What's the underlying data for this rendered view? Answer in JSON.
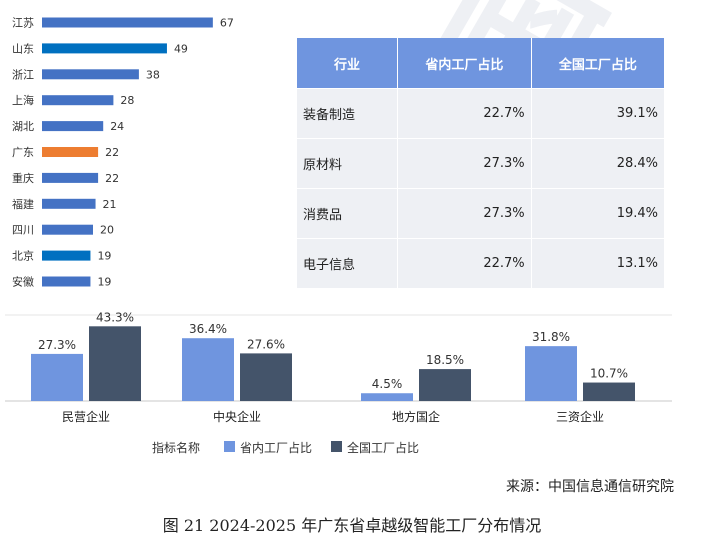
{
  "watermark": "国信通院",
  "colors": {
    "blue": "#4472c4",
    "dark_blue": "#0070c0",
    "orange": "#ed7d31",
    "light_blue": "#6f95df",
    "navy": "#44546a"
  },
  "chart_data": [
    {
      "type": "bar",
      "orientation": "horizontal",
      "categories": [
        "江苏",
        "山东",
        "浙江",
        "上海",
        "湖北",
        "广东",
        "重庆",
        "福建",
        "四川",
        "北京",
        "安徽"
      ],
      "values": [
        67,
        49,
        38,
        28,
        24,
        22,
        22,
        21,
        20,
        19,
        19
      ],
      "bar_colors": [
        "#4472c4",
        "#0070c0",
        "#4472c4",
        "#4472c4",
        "#4472c4",
        "#ed7d31",
        "#4472c4",
        "#4472c4",
        "#4472c4",
        "#0070c0",
        "#4472c4"
      ],
      "data_labels": true,
      "grid": false
    },
    {
      "type": "table",
      "columns": [
        "行业",
        "省内工厂占比",
        "全国工厂占比"
      ],
      "rows": [
        [
          "装备制造",
          "22.7%",
          "39.1%"
        ],
        [
          "原材料",
          "27.3%",
          "28.4%"
        ],
        [
          "消费品",
          "27.3%",
          "19.4%"
        ],
        [
          "电子信息",
          "22.7%",
          "13.1%"
        ]
      ]
    },
    {
      "type": "bar",
      "orientation": "vertical",
      "categories": [
        "民营企业",
        "中央企业",
        "地方国企",
        "三资企业"
      ],
      "series": [
        {
          "name": "省内工厂占比",
          "values": [
            27.3,
            36.4,
            4.5,
            31.8
          ],
          "color": "#6f95df"
        },
        {
          "name": "全国工厂占比",
          "values": [
            43.3,
            27.6,
            18.5,
            10.7
          ],
          "color": "#44546a"
        }
      ],
      "value_labels": [
        [
          "27.3%",
          "36.4%",
          "4.5%",
          "31.8%"
        ],
        [
          "43.3%",
          "27.6%",
          "18.5%",
          "10.7%"
        ]
      ],
      "legend_title": "指标名称",
      "legend_position": "bottom",
      "grid": false
    }
  ],
  "source": "来源：中国信息通信研究院",
  "caption": "图  21 2024-2025 年广东省卓越级智能工厂分布情况"
}
